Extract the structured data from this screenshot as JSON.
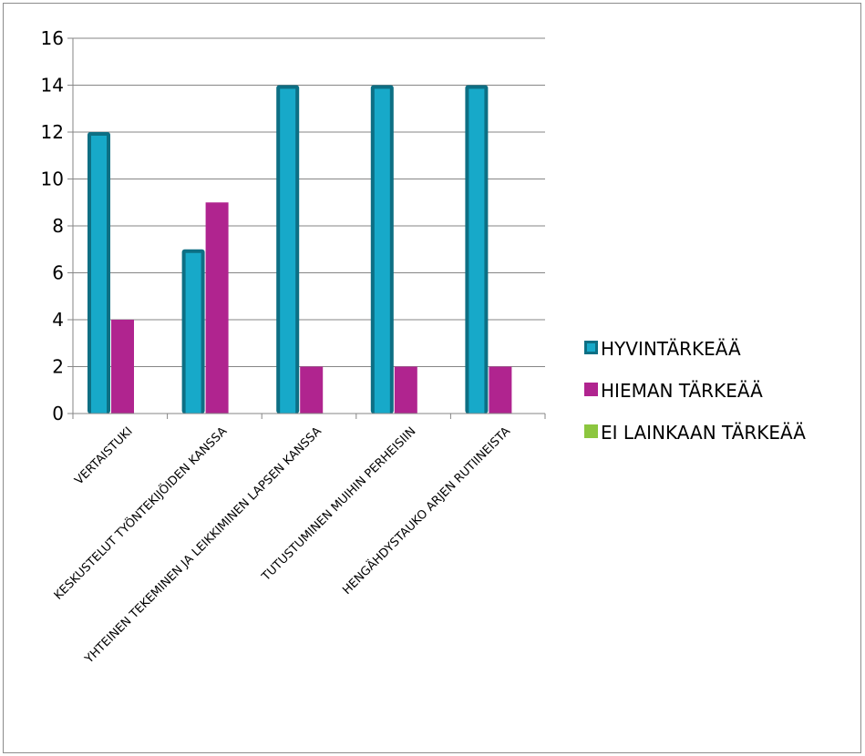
{
  "chart_data": {
    "type": "bar",
    "title": "",
    "xlabel": "",
    "ylabel": "",
    "categories": [
      "VERTAISTUKI",
      "KESKUSTELUT TYÖNTEKIJÖIDEN KANSSA",
      "YHTEINEN TEKEMINEN JA LEIKKIMINEN LAPSEN KANSSA",
      "TUTUSTUMINEN MUIHIN PERHEISIIN",
      "HENGÄHDYSTAUKO ARJEN RUTIINEISTA"
    ],
    "series": [
      {
        "name": "HYVINTÄRKEÄÄ",
        "values": [
          12,
          7,
          14,
          14,
          14
        ],
        "color": "#17a9c9",
        "edge": "#0d6f84"
      },
      {
        "name": "HIEMAN TÄRKEÄÄ",
        "values": [
          4,
          9,
          2,
          2,
          2
        ],
        "color": "#b0248f",
        "edge": "#b0248f"
      },
      {
        "name": "EI LAINKAAN TÄRKEÄÄ",
        "values": [
          0,
          0,
          0,
          0,
          0
        ],
        "color": "#8cc63f",
        "edge": "#8cc63f"
      }
    ],
    "ylim": [
      0,
      16
    ],
    "yticks": [
      0,
      2,
      4,
      6,
      8,
      10,
      12,
      14,
      16
    ],
    "grid": true,
    "legend": "right"
  }
}
